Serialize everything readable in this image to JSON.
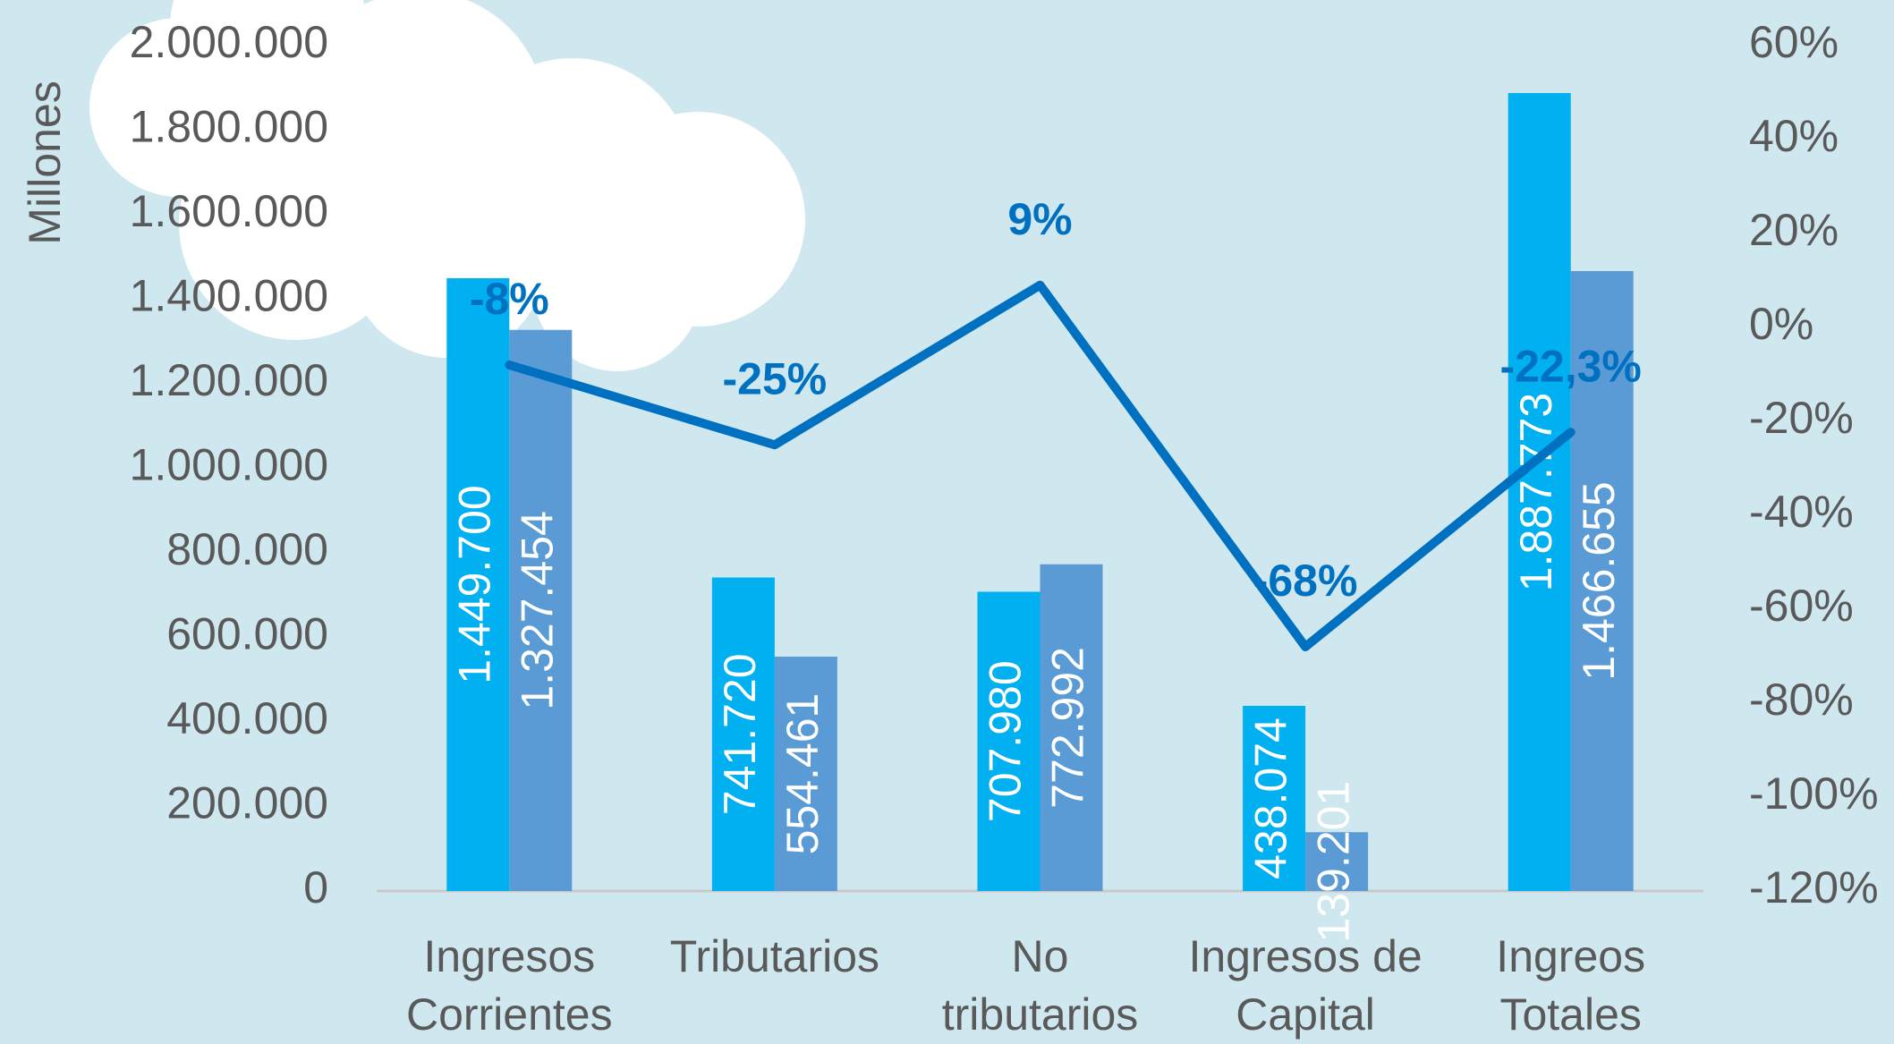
{
  "chart_data": {
    "type": "bar",
    "y_axis_label": "Millones",
    "categories": [
      [
        "Ingresos",
        "Corrientes"
      ],
      [
        "Tributarios"
      ],
      [
        "No",
        "tributarios"
      ],
      [
        "Ingresos de",
        "Capital"
      ],
      [
        "Ingreos",
        "Totales"
      ]
    ],
    "series": [
      {
        "color": "#00b0f0",
        "values": [
          1449700,
          741720,
          707980,
          438074,
          1887773
        ],
        "value_labels": [
          "1.449.700",
          "741.720",
          "707.980",
          "438.074",
          "1.887.773"
        ]
      },
      {
        "color": "#5b9bd5",
        "values": [
          1327454,
          554461,
          772992,
          139201,
          1466655
        ],
        "value_labels": [
          "1.327.454",
          "554.461",
          "772.992",
          "139.201",
          "1.466.655"
        ]
      },
      {
        "type": "line",
        "axis": "y2",
        "color": "#0070c0",
        "values": [
          -8,
          -25,
          9,
          -68,
          -22.3
        ],
        "value_labels": [
          "-8%",
          "-25%",
          "9%",
          "-68%",
          "-22,3%"
        ]
      }
    ],
    "ylim": [
      0,
      2000000
    ],
    "yticks": [
      0,
      {
        "value": 200000,
        "label": "200.000"
      },
      {
        "value": 400000,
        "label": "400.000"
      },
      {
        "value": 600000,
        "label": "600.000"
      },
      {
        "value": 800000,
        "label": "800.000"
      },
      {
        "value": 1000000,
        "label": "1.000.000"
      },
      {
        "value": 1200000,
        "label": "1.200.000"
      },
      {
        "value": 1400000,
        "label": "1.400.000"
      },
      {
        "value": 1600000,
        "label": "1.600.000"
      },
      {
        "value": 1800000,
        "label": "1.800.000"
      },
      {
        "value": 2000000,
        "label": "2.000.000"
      }
    ],
    "y2lim": [
      -120,
      60
    ],
    "y2ticks": [
      {
        "value": -120,
        "label": "-120%"
      },
      {
        "value": -100,
        "label": "-100%"
      },
      {
        "value": -80,
        "label": "-80%"
      },
      {
        "value": -60,
        "label": "-60%"
      },
      {
        "value": -40,
        "label": "-40%"
      },
      {
        "value": -20,
        "label": "-20%"
      },
      {
        "value": 0,
        "label": "0%"
      },
      {
        "value": 20,
        "label": "20%"
      },
      {
        "value": 40,
        "label": "40%"
      },
      {
        "value": 60,
        "label": "60%"
      }
    ]
  }
}
